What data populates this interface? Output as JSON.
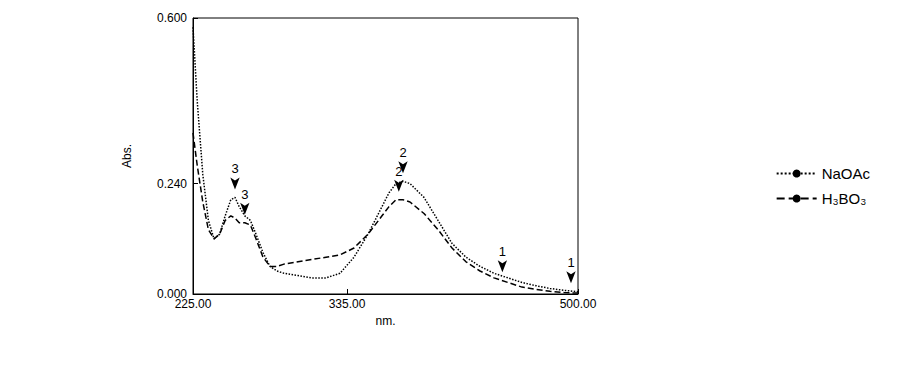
{
  "chart_data": {
    "type": "line",
    "x_label": "nm.",
    "y_label": "Abs.",
    "x": [
      225,
      228,
      232,
      236,
      240,
      244,
      248,
      252,
      255,
      258,
      262,
      266,
      270,
      275,
      280,
      285,
      290,
      300,
      310,
      320,
      330,
      340,
      350,
      360,
      365,
      370,
      375,
      380,
      390,
      400,
      410,
      420,
      430,
      440,
      450,
      460,
      470,
      480,
      490,
      500
    ],
    "series": [
      {
        "name": "NaOAc",
        "color": "#000000",
        "line_style": "dotted",
        "values": [
          0.58,
          0.42,
          0.26,
          0.16,
          0.12,
          0.13,
          0.17,
          0.205,
          0.21,
          0.19,
          0.17,
          0.16,
          0.13,
          0.09,
          0.06,
          0.05,
          0.045,
          0.04,
          0.035,
          0.035,
          0.045,
          0.08,
          0.13,
          0.19,
          0.22,
          0.24,
          0.245,
          0.24,
          0.21,
          0.16,
          0.11,
          0.08,
          0.06,
          0.045,
          0.035,
          0.025,
          0.018,
          0.012,
          0.008,
          0.005
        ],
        "annotations": [
          {
            "text": "3",
            "x": 255,
            "y": 0.21
          },
          {
            "text": "2",
            "x": 375,
            "y": 0.245
          },
          {
            "text": "1",
            "x": 495,
            "y": 0.006
          }
        ]
      },
      {
        "name": "H₃BO₃",
        "color": "#000000",
        "line_style": "dashed",
        "values": [
          0.35,
          0.28,
          0.2,
          0.14,
          0.12,
          0.13,
          0.16,
          0.17,
          0.165,
          0.155,
          0.155,
          0.15,
          0.12,
          0.08,
          0.06,
          0.06,
          0.065,
          0.07,
          0.075,
          0.08,
          0.085,
          0.1,
          0.13,
          0.17,
          0.19,
          0.205,
          0.205,
          0.2,
          0.175,
          0.14,
          0.1,
          0.07,
          0.05,
          0.035,
          0.025,
          0.015,
          0.01,
          0.006,
          0.003,
          0.002
        ],
        "annotations": [
          {
            "text": "3",
            "x": 262,
            "y": 0.155
          },
          {
            "text": "2",
            "x": 372,
            "y": 0.205
          },
          {
            "text": "1",
            "x": 446,
            "y": 0.03
          }
        ]
      }
    ],
    "xlim": [
      225,
      500
    ],
    "xticks": [
      {
        "value": 225,
        "label": "225.00"
      },
      {
        "value": 335,
        "label": "335.00"
      },
      {
        "value": 500,
        "label": "500.00"
      }
    ],
    "ylim": [
      0,
      0.6
    ],
    "yticks": [
      {
        "value": 0,
        "label": "0.000"
      },
      {
        "value": 0.24,
        "label": "0.240"
      },
      {
        "value": 0.6,
        "label": "0.600"
      }
    ],
    "grid": false,
    "legend": "right"
  }
}
